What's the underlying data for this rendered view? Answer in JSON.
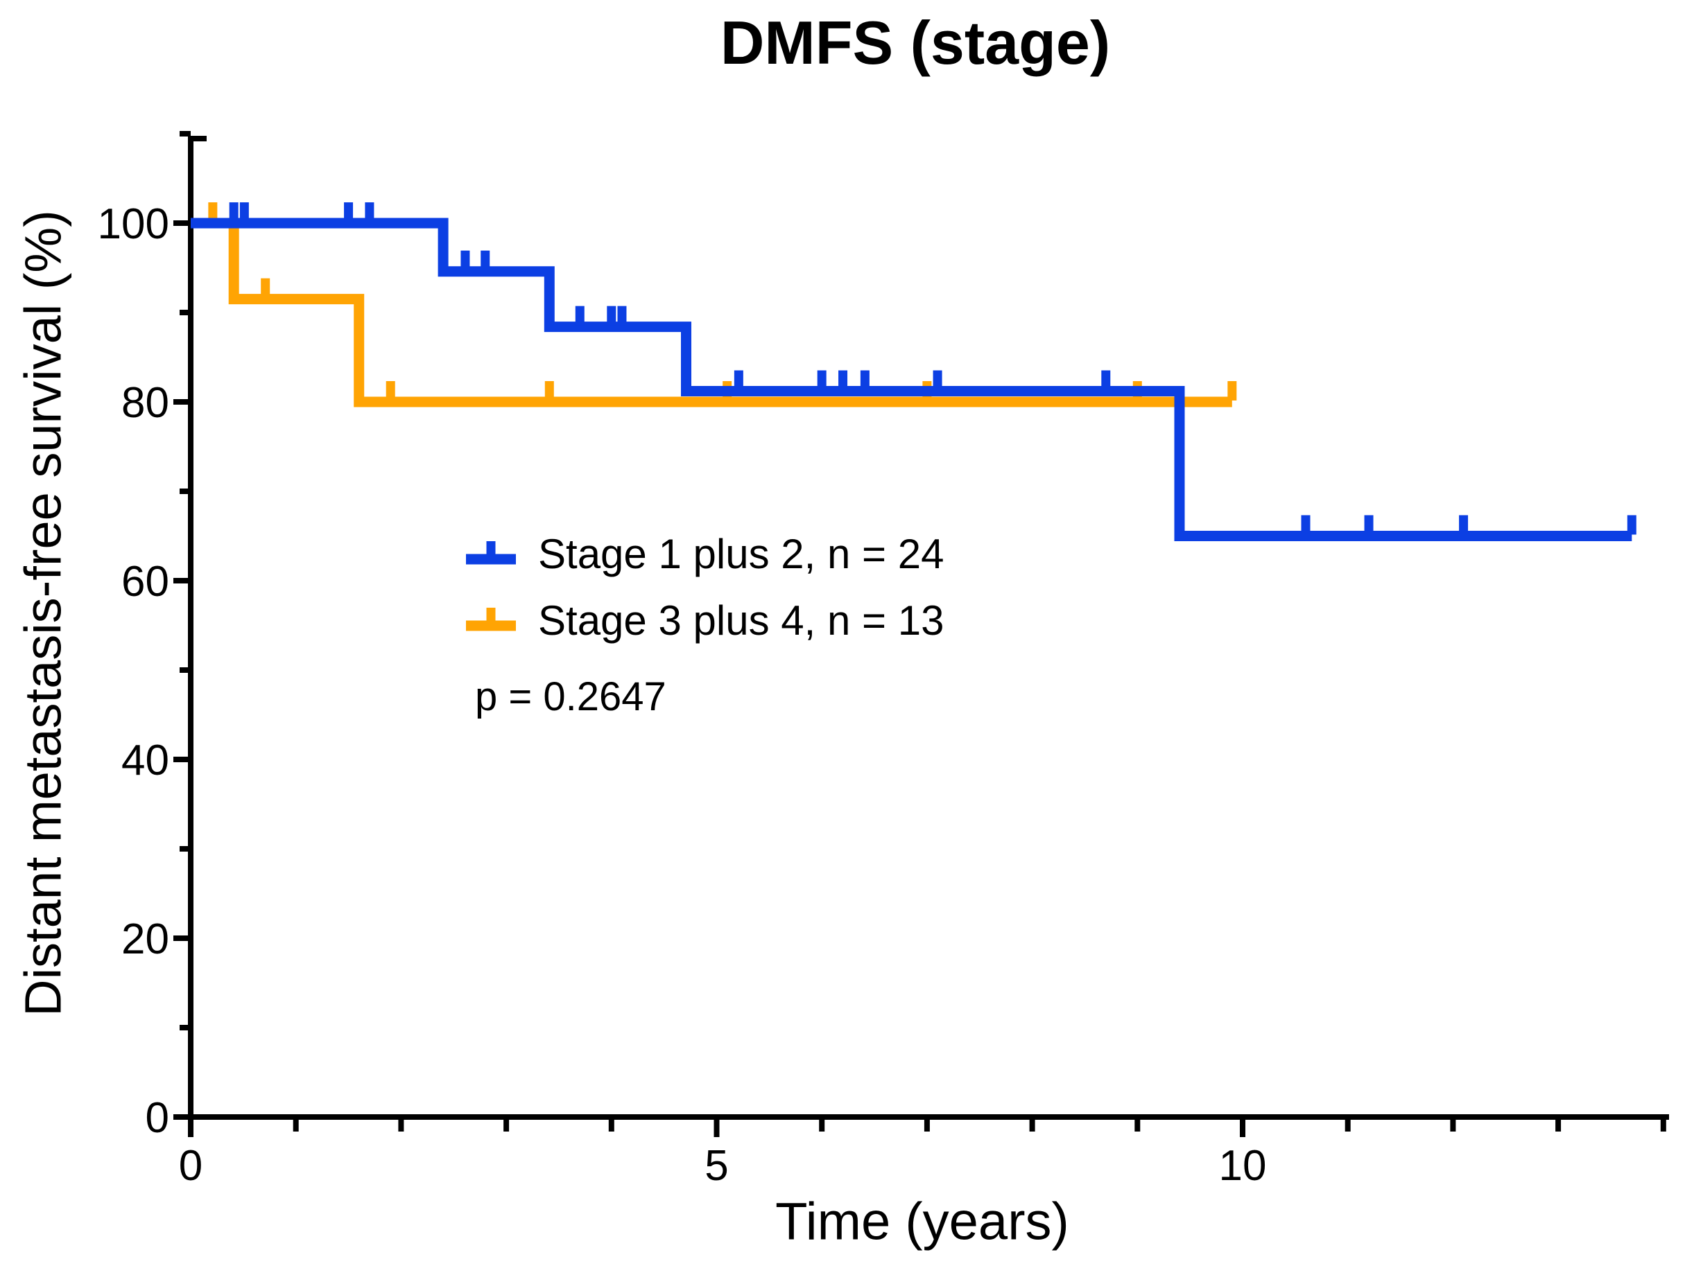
{
  "chart_data": {
    "type": "line",
    "subtype": "kaplan-meier-step-survival",
    "title": "DMFS (stage)",
    "xlabel": "Time (years)",
    "ylabel": "Distant metastasis-free survival (%)",
    "p_text": "p = 0.2647",
    "legend_position": "inside-center-left",
    "grid": false,
    "x_axis": {
      "min": 0,
      "max": 14,
      "major_ticks": [
        0,
        5,
        10
      ],
      "minor_ticks": [
        1,
        2,
        3,
        4,
        6,
        7,
        8,
        9,
        11,
        12,
        13,
        14
      ]
    },
    "y_axis": {
      "min": 0,
      "max": 110,
      "major_ticks": [
        0,
        20,
        40,
        60,
        80,
        100
      ],
      "minor_ticks": [
        10,
        30,
        50,
        70,
        90,
        110
      ]
    },
    "series": [
      {
        "id": "stage-3-plus-4",
        "name": "Stage 3 plus 4, n = 13",
        "n": 13,
        "color": "#ffa404",
        "steps": [
          [
            0,
            100
          ],
          [
            0.41,
            100
          ],
          [
            0.41,
            91.5
          ],
          [
            1.6,
            91.5
          ],
          [
            1.6,
            80.0
          ],
          [
            9.9,
            80.0
          ]
        ],
        "censor_marks": [
          [
            0.21,
            100
          ],
          [
            0.71,
            91.5
          ],
          [
            1.9,
            80.0
          ],
          [
            3.41,
            80.0
          ],
          [
            5.1,
            80.0
          ],
          [
            7.0,
            80.0
          ],
          [
            9.0,
            80.0
          ],
          [
            9.9,
            80.0
          ]
        ]
      },
      {
        "id": "stage-1-plus-2",
        "name": "Stage 1 plus 2, n = 24",
        "n": 24,
        "color": "#0c3fe3",
        "steps": [
          [
            0,
            100
          ],
          [
            2.4,
            100
          ],
          [
            2.4,
            94.6
          ],
          [
            3.41,
            94.6
          ],
          [
            3.41,
            88.4
          ],
          [
            4.71,
            88.4
          ],
          [
            4.71,
            81.2
          ],
          [
            9.4,
            81.2
          ],
          [
            9.4,
            65.0
          ],
          [
            13.7,
            65.0
          ]
        ],
        "censor_marks": [
          [
            0.41,
            100
          ],
          [
            0.51,
            100
          ],
          [
            1.5,
            100
          ],
          [
            1.7,
            100
          ],
          [
            2.61,
            94.6
          ],
          [
            2.8,
            94.6
          ],
          [
            3.7,
            88.4
          ],
          [
            4.0,
            88.4
          ],
          [
            4.1,
            88.4
          ],
          [
            5.21,
            81.2
          ],
          [
            6.0,
            81.2
          ],
          [
            6.2,
            81.2
          ],
          [
            6.41,
            81.2
          ],
          [
            7.1,
            81.2
          ],
          [
            8.7,
            81.2
          ],
          [
            10.6,
            65.0
          ],
          [
            11.2,
            65.0
          ],
          [
            12.1,
            65.0
          ],
          [
            13.7,
            65.0
          ]
        ]
      }
    ]
  }
}
